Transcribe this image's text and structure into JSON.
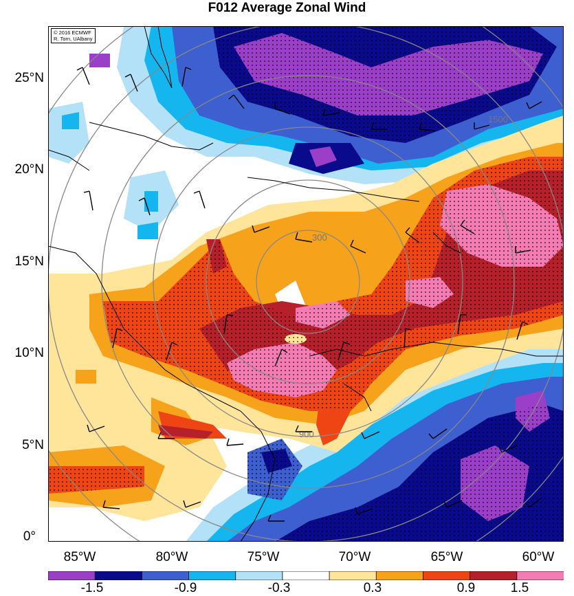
{
  "title": "F012 Average Zonal Wind",
  "credit": {
    "line1": "© 2016 ECMWF",
    "line2": "R. Torn, UAlbany"
  },
  "map": {
    "lat_ticks": [
      "25°N",
      "20°N",
      "15°N",
      "10°N",
      "5°N",
      "0°"
    ],
    "lon_ticks": [
      "85°W",
      "80°W",
      "75°W",
      "70°W",
      "65°W",
      "60°W"
    ],
    "range_ring_labels": [
      "300",
      "900",
      "1500"
    ]
  },
  "colorbar": {
    "colors": [
      "#9b3fc9",
      "#0a0a8c",
      "#3d5fcf",
      "#15b6f0",
      "#b3e1f7",
      "#ffffff",
      "#ffe59a",
      "#f7a21b",
      "#ef4514",
      "#b5202a",
      "#f57bb3"
    ],
    "tick_labels": [
      "-1.5",
      "-0.9",
      "-0.3",
      "0.3",
      "0.9",
      "1.5"
    ]
  }
}
